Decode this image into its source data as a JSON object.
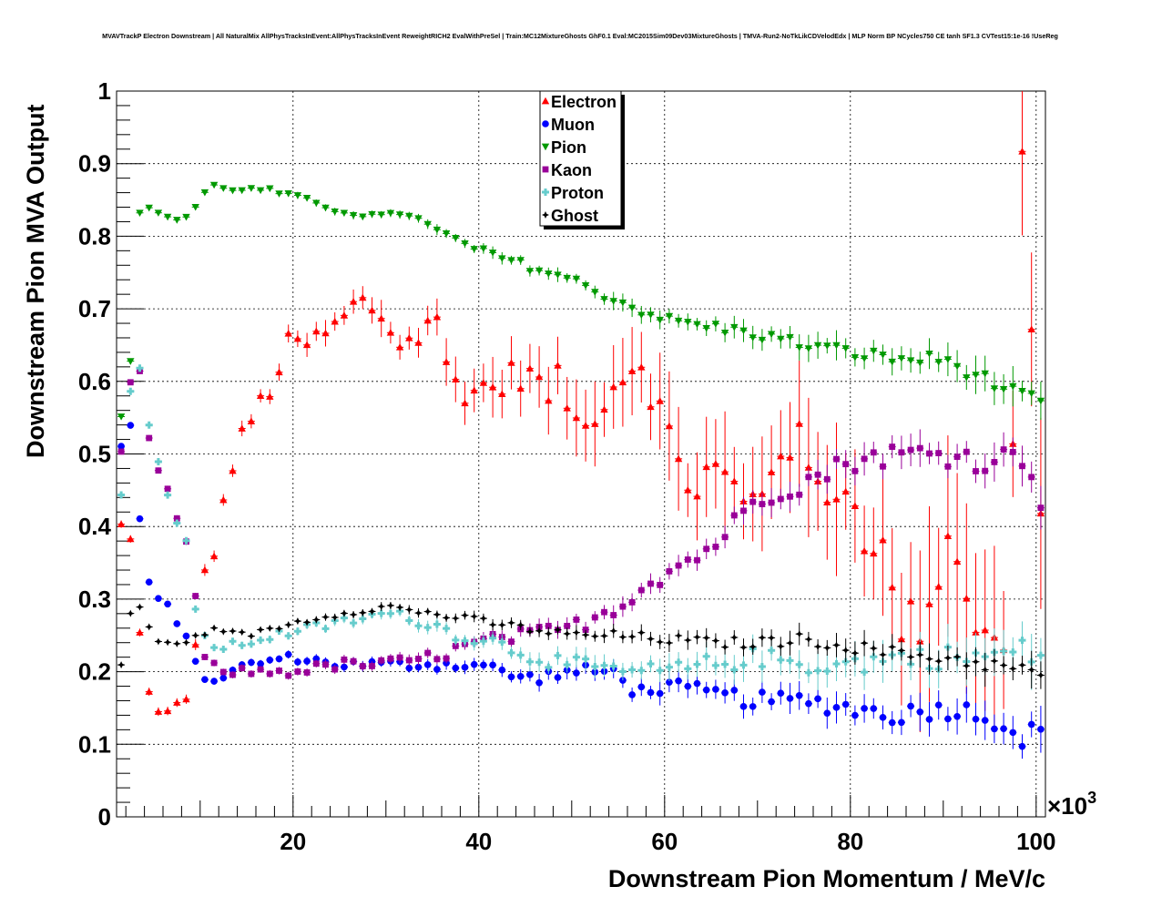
{
  "chart_data": {
    "type": "scatter",
    "title": "MVAVTrackP Electron Downstream | All NaturalMix AllPhysTracksInEvent:AllPhysTracksInEvent ReweightRICH2 EvalWithPreSel | Train:MC12MixtureGhosts GhF0.1 Eval:MC2015Sim09Dev03MixtureGhosts | TMVA-Run2-NoTkLikCDVelodEdx | MLP Norm BP NCycles750 CE tanh SF1.3 CVTest15:1e-16 !UseReg",
    "xlabel": "Downstream Pion Momentum / MeV/c",
    "ylabel": "Downstream Pion MVA Output",
    "x_multiplier_label": "×10",
    "x_multiplier_exp": "3",
    "xlim": [
      1,
      101
    ],
    "ylim": [
      0,
      1
    ],
    "x_ticks": [
      "20",
      "40",
      "60",
      "80",
      "100"
    ],
    "y_ticks": [
      "0",
      "0.1",
      "0.2",
      "0.3",
      "0.4",
      "0.5",
      "0.6",
      "0.7",
      "0.8",
      "0.9",
      "1"
    ],
    "legend_position": "top-center",
    "series": [
      {
        "name": "Electron",
        "color": "#ff0000",
        "marker": "triangle-up",
        "anchors": [
          [
            1.5,
            0.4
          ],
          [
            2.5,
            0.38
          ],
          [
            3.5,
            0.25
          ],
          [
            4.5,
            0.18
          ],
          [
            5.5,
            0.14
          ],
          [
            6.5,
            0.14
          ],
          [
            8.5,
            0.16
          ],
          [
            10.5,
            0.33
          ],
          [
            11.5,
            0.37
          ],
          [
            12.5,
            0.43
          ],
          [
            14,
            0.51
          ],
          [
            16,
            0.56
          ],
          [
            18,
            0.6
          ],
          [
            19.5,
            0.65
          ],
          [
            21,
            0.65
          ],
          [
            23,
            0.66
          ],
          [
            25,
            0.68
          ],
          [
            27,
            0.71
          ],
          [
            29,
            0.7
          ],
          [
            31,
            0.66
          ],
          [
            33,
            0.65
          ],
          [
            35,
            0.7
          ],
          [
            37,
            0.6
          ],
          [
            39,
            0.59
          ],
          [
            41,
            0.59
          ],
          [
            43,
            0.6
          ],
          [
            45,
            0.62
          ],
          [
            47,
            0.58
          ],
          [
            49,
            0.6
          ],
          [
            51,
            0.52
          ],
          [
            53,
            0.58
          ],
          [
            55,
            0.6
          ],
          [
            57,
            0.64
          ],
          [
            59,
            0.58
          ],
          [
            61,
            0.5
          ],
          [
            63,
            0.45
          ],
          [
            65,
            0.48
          ],
          [
            67,
            0.46
          ],
          [
            69,
            0.42
          ],
          [
            71,
            0.47
          ],
          [
            73,
            0.53
          ],
          [
            75,
            0.5
          ],
          [
            77,
            0.42
          ],
          [
            79,
            0.48
          ],
          [
            81,
            0.4
          ],
          [
            83,
            0.39
          ],
          [
            85,
            0.27
          ],
          [
            87,
            0.26
          ],
          [
            89,
            0.32
          ],
          [
            91,
            0.4
          ],
          [
            93,
            0.29
          ],
          [
            95,
            0.22
          ],
          [
            97,
            0.26
          ],
          [
            98.5,
            0.95
          ],
          [
            100.5,
            0.4
          ]
        ],
        "noise": 0.035,
        "err_start": 0.005,
        "err_end": 0.12
      },
      {
        "name": "Muon",
        "color": "#0000ff",
        "marker": "circle",
        "anchors": [
          [
            1.5,
            0.51
          ],
          [
            2.5,
            0.54
          ],
          [
            3.5,
            0.41
          ],
          [
            4.5,
            0.32
          ],
          [
            5.5,
            0.3
          ],
          [
            6.5,
            0.29
          ],
          [
            7.5,
            0.27
          ],
          [
            8.5,
            0.25
          ],
          [
            9.5,
            0.21
          ],
          [
            10.5,
            0.19
          ],
          [
            12,
            0.19
          ],
          [
            15,
            0.21
          ],
          [
            20,
            0.22
          ],
          [
            25,
            0.21
          ],
          [
            30,
            0.21
          ],
          [
            35,
            0.21
          ],
          [
            40,
            0.21
          ],
          [
            45,
            0.19
          ],
          [
            50,
            0.2
          ],
          [
            55,
            0.2
          ],
          [
            57,
            0.17
          ],
          [
            60,
            0.18
          ],
          [
            65,
            0.17
          ],
          [
            70,
            0.16
          ],
          [
            75,
            0.16
          ],
          [
            80,
            0.15
          ],
          [
            85,
            0.14
          ],
          [
            90,
            0.15
          ],
          [
            95,
            0.14
          ],
          [
            98.5,
            0.11
          ],
          [
            100.5,
            0.12
          ]
        ],
        "noise": 0.012,
        "err_start": 0.004,
        "err_end": 0.025
      },
      {
        "name": "Pion",
        "color": "#009900",
        "marker": "triangle-down",
        "anchors": [
          [
            1.5,
            0.55
          ],
          [
            2.5,
            0.63
          ],
          [
            3.5,
            0.83
          ],
          [
            4.5,
            0.84
          ],
          [
            6,
            0.83
          ],
          [
            8,
            0.82
          ],
          [
            9.5,
            0.84
          ],
          [
            11,
            0.87
          ],
          [
            13,
            0.866
          ],
          [
            15,
            0.864
          ],
          [
            17,
            0.864
          ],
          [
            20,
            0.855
          ],
          [
            25,
            0.835
          ],
          [
            30,
            0.825
          ],
          [
            32,
            0.835
          ],
          [
            35,
            0.81
          ],
          [
            40,
            0.78
          ],
          [
            45,
            0.76
          ],
          [
            50,
            0.74
          ],
          [
            55,
            0.71
          ],
          [
            60,
            0.685
          ],
          [
            65,
            0.675
          ],
          [
            70,
            0.665
          ],
          [
            75,
            0.65
          ],
          [
            80,
            0.64
          ],
          [
            85,
            0.63
          ],
          [
            90,
            0.63
          ],
          [
            95,
            0.6
          ],
          [
            98,
            0.58
          ],
          [
            100.5,
            0.57
          ]
        ],
        "noise": 0.008,
        "err_start": 0.003,
        "err_end": 0.022
      },
      {
        "name": "Kaon",
        "color": "#990099",
        "marker": "square",
        "anchors": [
          [
            1.5,
            0.5
          ],
          [
            2.5,
            0.6
          ],
          [
            3.5,
            0.61
          ],
          [
            4.5,
            0.52
          ],
          [
            5.5,
            0.48
          ],
          [
            6.5,
            0.45
          ],
          [
            7.5,
            0.41
          ],
          [
            8.5,
            0.38
          ],
          [
            9.5,
            0.3
          ],
          [
            10.5,
            0.22
          ],
          [
            12,
            0.2
          ],
          [
            15,
            0.2
          ],
          [
            20,
            0.2
          ],
          [
            25,
            0.21
          ],
          [
            30,
            0.21
          ],
          [
            35,
            0.22
          ],
          [
            40,
            0.24
          ],
          [
            45,
            0.25
          ],
          [
            50,
            0.26
          ],
          [
            55,
            0.29
          ],
          [
            58,
            0.32
          ],
          [
            62,
            0.35
          ],
          [
            65,
            0.37
          ],
          [
            70,
            0.44
          ],
          [
            75,
            0.46
          ],
          [
            80,
            0.49
          ],
          [
            85,
            0.5
          ],
          [
            90,
            0.5
          ],
          [
            95,
            0.49
          ],
          [
            99,
            0.5
          ],
          [
            100.5,
            0.44
          ]
        ],
        "noise": 0.014,
        "err_start": 0.004,
        "err_end": 0.025
      },
      {
        "name": "Proton",
        "color": "#66cccc",
        "marker": "cross",
        "anchors": [
          [
            1.5,
            0.44
          ],
          [
            2.5,
            0.59
          ],
          [
            3.5,
            0.62
          ],
          [
            4.5,
            0.54
          ],
          [
            5.5,
            0.49
          ],
          [
            6.5,
            0.44
          ],
          [
            7.5,
            0.4
          ],
          [
            8.5,
            0.38
          ],
          [
            9.5,
            0.29
          ],
          [
            11,
            0.23
          ],
          [
            15,
            0.24
          ],
          [
            18,
            0.25
          ],
          [
            22,
            0.26
          ],
          [
            26,
            0.27
          ],
          [
            30,
            0.28
          ],
          [
            34,
            0.27
          ],
          [
            38,
            0.25
          ],
          [
            42,
            0.24
          ],
          [
            46,
            0.22
          ],
          [
            50,
            0.21
          ],
          [
            55,
            0.2
          ],
          [
            60,
            0.2
          ],
          [
            65,
            0.21
          ],
          [
            70,
            0.22
          ],
          [
            75,
            0.21
          ],
          [
            80,
            0.21
          ],
          [
            85,
            0.22
          ],
          [
            90,
            0.22
          ],
          [
            95,
            0.22
          ],
          [
            98,
            0.23
          ],
          [
            100.5,
            0.22
          ]
        ],
        "noise": 0.014,
        "err_start": 0.004,
        "err_end": 0.03
      },
      {
        "name": "Ghost",
        "color": "#000000",
        "marker": "star",
        "anchors": [
          [
            1.5,
            0.21
          ],
          [
            2.5,
            0.28
          ],
          [
            3.5,
            0.29
          ],
          [
            4.5,
            0.26
          ],
          [
            5.5,
            0.24
          ],
          [
            8,
            0.24
          ],
          [
            10,
            0.25
          ],
          [
            12,
            0.26
          ],
          [
            15,
            0.25
          ],
          [
            18,
            0.26
          ],
          [
            21,
            0.27
          ],
          [
            25,
            0.28
          ],
          [
            30,
            0.29
          ],
          [
            35,
            0.28
          ],
          [
            40,
            0.27
          ],
          [
            45,
            0.26
          ],
          [
            50,
            0.25
          ],
          [
            55,
            0.25
          ],
          [
            60,
            0.245
          ],
          [
            65,
            0.24
          ],
          [
            70,
            0.24
          ],
          [
            75,
            0.245
          ],
          [
            80,
            0.235
          ],
          [
            85,
            0.225
          ],
          [
            90,
            0.22
          ],
          [
            95,
            0.21
          ],
          [
            99,
            0.2
          ],
          [
            100.5,
            0.2
          ]
        ],
        "noise": 0.008,
        "err_start": 0.003,
        "err_end": 0.02
      }
    ]
  }
}
